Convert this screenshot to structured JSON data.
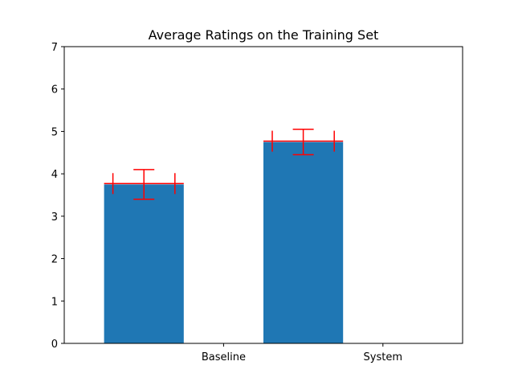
{
  "chart_data": {
    "type": "bar",
    "title": "Average Ratings on the Training Set",
    "xlabel": "",
    "ylabel": "",
    "categories": [
      "Baseline",
      "System"
    ],
    "values": [
      3.75,
      4.75
    ],
    "error_low": [
      3.4,
      4.45
    ],
    "error_high": [
      4.1,
      5.05
    ],
    "mean_marker": [
      3.77,
      4.77
    ],
    "ylim": [
      0,
      7
    ],
    "yticks": [
      0,
      1,
      2,
      3,
      4,
      5,
      6,
      7
    ],
    "grid": false,
    "bar_color": "#1f77b4",
    "error_color": "#ff0000"
  }
}
